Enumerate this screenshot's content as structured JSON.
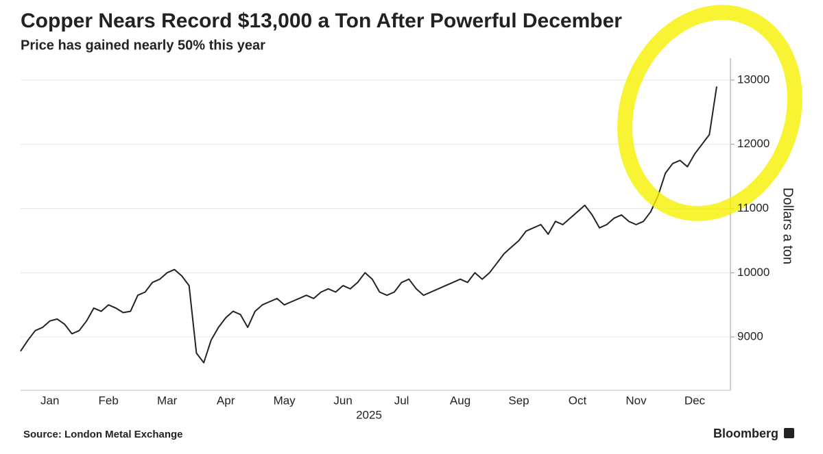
{
  "chart_data": {
    "type": "line",
    "title": "Copper Nears Record $13,000 a Ton After Powerful December",
    "subtitle": "Price has gained nearly 50% this year",
    "y_axis_label": "Dollars a ton",
    "x_axis_label": "2025",
    "source": "Source: London Metal Exchange",
    "brand": "Bloomberg",
    "categories": [
      null,
      null,
      null,
      null,
      "Jan",
      null,
      null,
      null,
      null,
      null,
      null,
      null,
      "Feb",
      null,
      null,
      null,
      null,
      null,
      null,
      null,
      "Mar",
      null,
      null,
      null,
      null,
      null,
      null,
      null,
      "Apr",
      null,
      null,
      null,
      null,
      null,
      null,
      null,
      "May",
      null,
      null,
      null,
      null,
      null,
      null,
      null,
      "Jun",
      null,
      null,
      null,
      null,
      null,
      null,
      null,
      "Jul",
      null,
      null,
      null,
      null,
      null,
      null,
      null,
      "Aug",
      null,
      null,
      null,
      null,
      null,
      null,
      null,
      "Sep",
      null,
      null,
      null,
      null,
      null,
      null,
      null,
      "Oct",
      null,
      null,
      null,
      null,
      null,
      null,
      null,
      "Nov",
      null,
      null,
      null,
      null,
      null,
      null,
      null,
      "Dec",
      null,
      null,
      null
    ],
    "series": [
      {
        "name": "Copper",
        "color": "#222222",
        "values": [
          8780,
          8950,
          9100,
          9150,
          9250,
          9280,
          9200,
          9050,
          9100,
          9250,
          9450,
          9400,
          9500,
          9450,
          9380,
          9400,
          9650,
          9700,
          9850,
          9900,
          10000,
          10050,
          9950,
          9800,
          8750,
          8600,
          8950,
          9150,
          9300,
          9400,
          9350,
          9150,
          9400,
          9500,
          9550,
          9600,
          9500,
          9550,
          9600,
          9650,
          9600,
          9700,
          9750,
          9700,
          9800,
          9750,
          9850,
          10000,
          9900,
          9700,
          9650,
          9700,
          9850,
          9900,
          9750,
          9650,
          9700,
          9750,
          9800,
          9850,
          9900,
          9850,
          10000,
          9900,
          10000,
          10150,
          10300,
          10400,
          10500,
          10650,
          10700,
          10750,
          10600,
          10800,
          10750,
          10850,
          10950,
          11050,
          10900,
          10700,
          10750,
          10850,
          10900,
          10800,
          10750,
          10800,
          10950,
          11200,
          11550,
          11700,
          11750,
          11650,
          11850,
          12000,
          12150,
          12900
        ]
      }
    ],
    "ylim": [
      8170,
      13340
    ],
    "yticks": [
      9000,
      10000,
      11000,
      12000,
      13000
    ],
    "y_axis_side": "right",
    "grid": true
  }
}
